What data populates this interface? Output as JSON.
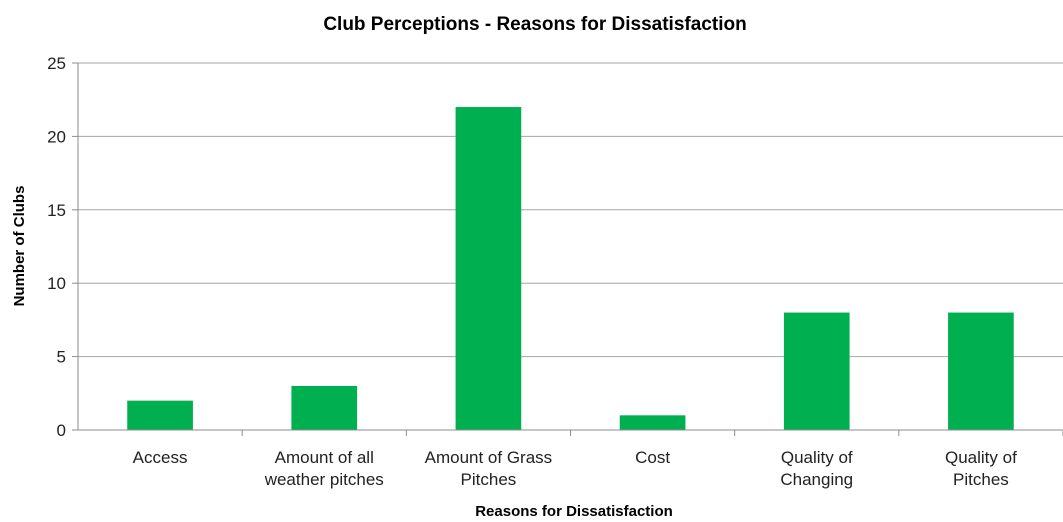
{
  "chart_data": {
    "type": "bar",
    "title": "Club Perceptions - Reasons for Dissatisfaction",
    "xlabel": "Reasons for Dissatisfaction",
    "ylabel": "Number of Clubs",
    "categories": [
      [
        "Access"
      ],
      [
        "Amount of all",
        "weather pitches"
      ],
      [
        "Amount of Grass",
        "Pitches"
      ],
      [
        "Cost"
      ],
      [
        "Quality of",
        "Changing"
      ],
      [
        "Quality of",
        "Pitches"
      ]
    ],
    "values": [
      2,
      3,
      22,
      1,
      8,
      8
    ],
    "ylim": [
      0,
      25
    ],
    "yticks": [
      "0",
      "5",
      "10",
      "15",
      "20",
      "25"
    ],
    "grid": true,
    "legend": "none",
    "bar_color": "#00b050"
  }
}
